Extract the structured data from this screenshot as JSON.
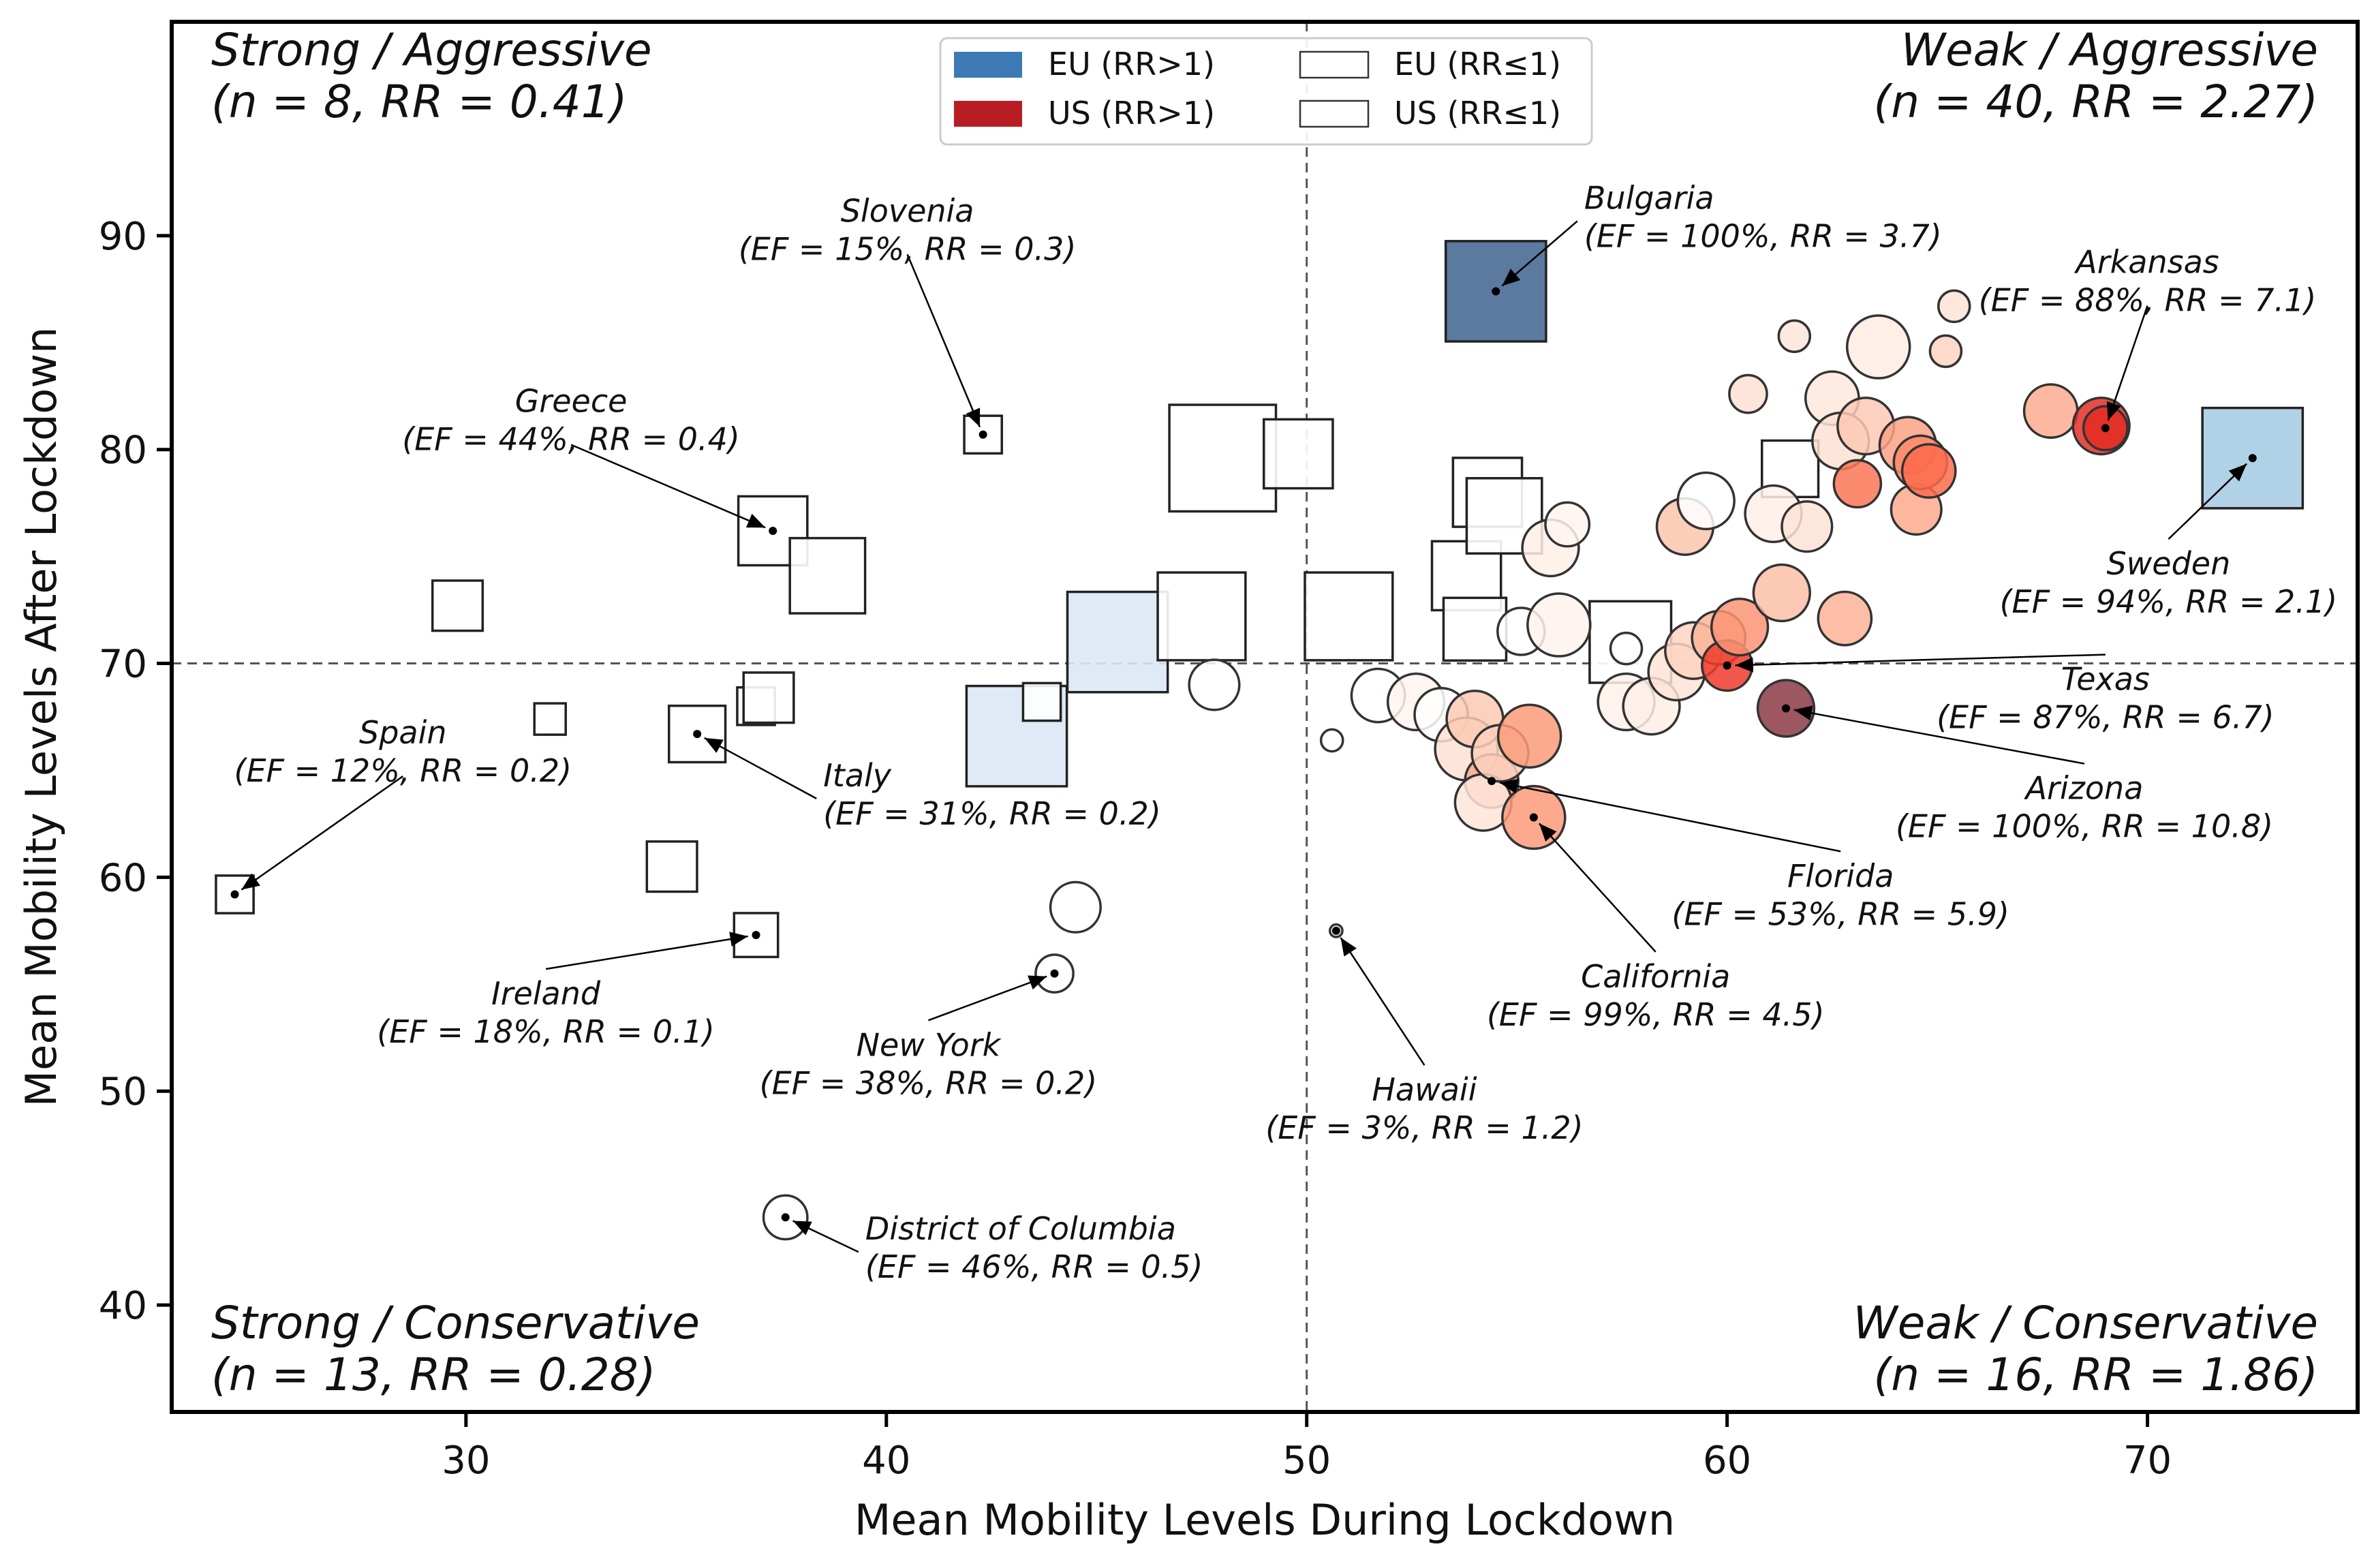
{
  "chart_data": {
    "type": "scatter",
    "xlabel": "Mean Mobility Levels During Lockdown",
    "ylabel": "Mean Mobility Levels After Lockdown",
    "xlim": [
      23,
      75
    ],
    "ylim": [
      35,
      100
    ],
    "xticks": [
      30,
      40,
      50,
      60,
      70
    ],
    "yticks": [
      40,
      50,
      60,
      70,
      80,
      90
    ],
    "grid": false,
    "divider_x": 50,
    "divider_y": 70,
    "legend_position": "top-center",
    "legend": [
      {
        "label": "EU (RR>1)",
        "shape": "square",
        "color": "#3d7ab5",
        "filled": true
      },
      {
        "label": "EU (RR≤1)",
        "shape": "square",
        "color": "#ffffff",
        "filled": false
      },
      {
        "label": "US (RR>1)",
        "shape": "square",
        "color": "#b81d24",
        "filled": true
      },
      {
        "label": "US (RR≤1)",
        "shape": "square",
        "color": "#ffffff",
        "filled": false
      }
    ],
    "quadrants": [
      {
        "title": "Strong / Aggressive",
        "stats": "(n = 8, RR = 0.41)",
        "position": "top-left"
      },
      {
        "title": "Weak / Aggressive",
        "stats": "(n = 40, RR = 2.27)",
        "position": "top-right"
      },
      {
        "title": "Strong / Conservative",
        "stats": "(n = 13, RR = 0.28)",
        "position": "bottom-left"
      },
      {
        "title": "Weak / Conservative",
        "stats": "(n = 16, RR = 1.86)",
        "position": "bottom-right"
      }
    ],
    "eu_points": [
      {
        "x": 24.5,
        "y": 59.2,
        "s": 0.6,
        "fill": "#ffffff"
      },
      {
        "x": 29.8,
        "y": 72.7,
        "s": 0.8,
        "fill": "#ffffff"
      },
      {
        "x": 32.0,
        "y": 67.4,
        "s": 0.5,
        "fill": "#ffffff"
      },
      {
        "x": 34.9,
        "y": 60.5,
        "s": 0.8,
        "fill": "#ffffff"
      },
      {
        "x": 35.5,
        "y": 66.7,
        "s": 0.9,
        "fill": "#ffffff"
      },
      {
        "x": 36.9,
        "y": 57.3,
        "s": 0.7,
        "fill": "#ffffff"
      },
      {
        "x": 36.9,
        "y": 68.0,
        "s": 0.6,
        "fill": "#ffffff"
      },
      {
        "x": 37.2,
        "y": 68.4,
        "s": 0.8,
        "fill": "#ffffff"
      },
      {
        "x": 37.3,
        "y": 76.2,
        "s": 1.1,
        "fill": "#ffffff"
      },
      {
        "x": 38.6,
        "y": 74.1,
        "s": 1.2,
        "fill": "#ffffff"
      },
      {
        "x": 42.3,
        "y": 80.7,
        "s": 0.6,
        "fill": "#ffffff"
      },
      {
        "x": 43.1,
        "y": 66.6,
        "s": 1.6,
        "fill": "#dbe8f5"
      },
      {
        "x": 43.7,
        "y": 68.2,
        "s": 0.6,
        "fill": "#ffffff"
      },
      {
        "x": 45.5,
        "y": 71.0,
        "s": 1.6,
        "fill": "#dbe8f5"
      },
      {
        "x": 47.5,
        "y": 72.2,
        "s": 1.4,
        "fill": "#ffffff"
      },
      {
        "x": 48.0,
        "y": 79.6,
        "s": 1.7,
        "fill": "#ffffff"
      },
      {
        "x": 49.8,
        "y": 79.8,
        "s": 1.1,
        "fill": "#ffffff"
      },
      {
        "x": 51.0,
        "y": 72.2,
        "s": 1.4,
        "fill": "#ffffff"
      },
      {
        "x": 53.8,
        "y": 74.1,
        "s": 1.1,
        "fill": "#ffffff"
      },
      {
        "x": 54.0,
        "y": 71.6,
        "s": 1.0,
        "fill": "#ffffff"
      },
      {
        "x": 54.3,
        "y": 78.0,
        "s": 1.1,
        "fill": "#ffffff"
      },
      {
        "x": 54.5,
        "y": 87.4,
        "s": 1.6,
        "fill": "#4a6a96"
      },
      {
        "x": 54.7,
        "y": 76.9,
        "s": 1.2,
        "fill": "#ffffff"
      },
      {
        "x": 57.7,
        "y": 71.0,
        "s": 1.3,
        "fill": "#ffffff"
      },
      {
        "x": 61.5,
        "y": 79.1,
        "s": 0.9,
        "fill": "#ffffff"
      },
      {
        "x": 72.5,
        "y": 79.6,
        "s": 1.6,
        "fill": "#a9cce4"
      }
    ],
    "us_points": [
      {
        "x": 37.6,
        "y": 44.1,
        "s": 0.7,
        "fill": "#ffffff"
      },
      {
        "x": 44.0,
        "y": 55.5,
        "s": 0.6,
        "fill": "#ffffff"
      },
      {
        "x": 44.5,
        "y": 58.6,
        "s": 0.8,
        "fill": "#ffffff"
      },
      {
        "x": 47.8,
        "y": 69.0,
        "s": 0.8,
        "fill": "#ffffff"
      },
      {
        "x": 50.6,
        "y": 66.4,
        "s": 0.35,
        "fill": "#ffffff"
      },
      {
        "x": 50.7,
        "y": 57.5,
        "s": 0.2,
        "fill": "#ffffff"
      },
      {
        "x": 51.7,
        "y": 68.5,
        "s": 0.85,
        "fill": "#ffffff"
      },
      {
        "x": 52.6,
        "y": 68.2,
        "s": 0.9,
        "fill": "#fff5f0"
      },
      {
        "x": 53.2,
        "y": 67.6,
        "s": 0.85,
        "fill": "#ffffff"
      },
      {
        "x": 53.8,
        "y": 66.0,
        "s": 1.0,
        "fill": "#fde0d2"
      },
      {
        "x": 54.0,
        "y": 67.4,
        "s": 0.9,
        "fill": "#fccab4"
      },
      {
        "x": 54.4,
        "y": 64.5,
        "s": 0.85,
        "fill": "#fcaa8d"
      },
      {
        "x": 54.2,
        "y": 63.5,
        "s": 0.9,
        "fill": "#fee5d9"
      },
      {
        "x": 54.6,
        "y": 65.8,
        "s": 0.9,
        "fill": "#fdd0bc"
      },
      {
        "x": 55.1,
        "y": 71.5,
        "s": 0.75,
        "fill": "#ffffff"
      },
      {
        "x": 55.3,
        "y": 66.6,
        "s": 1.0,
        "fill": "#fb9b7a"
      },
      {
        "x": 55.4,
        "y": 62.8,
        "s": 1.0,
        "fill": "#fb9a7a"
      },
      {
        "x": 55.8,
        "y": 75.4,
        "s": 0.9,
        "fill": "#fff0e8"
      },
      {
        "x": 56.0,
        "y": 71.8,
        "s": 1.0,
        "fill": "#fff3ed"
      },
      {
        "x": 56.2,
        "y": 76.5,
        "s": 0.7,
        "fill": "#fff5f0"
      },
      {
        "x": 57.6,
        "y": 70.7,
        "s": 0.5,
        "fill": "#ffffff"
      },
      {
        "x": 57.6,
        "y": 68.2,
        "s": 0.9,
        "fill": "#fff1ea"
      },
      {
        "x": 58.2,
        "y": 68.0,
        "s": 0.9,
        "fill": "#fdeee6"
      },
      {
        "x": 58.8,
        "y": 69.6,
        "s": 0.9,
        "fill": "#fee4d8"
      },
      {
        "x": 59.0,
        "y": 76.4,
        "s": 0.9,
        "fill": "#fcc4ad"
      },
      {
        "x": 59.2,
        "y": 70.6,
        "s": 0.9,
        "fill": "#fdd4c2"
      },
      {
        "x": 59.5,
        "y": 77.6,
        "s": 0.9,
        "fill": "#ffffff"
      },
      {
        "x": 59.8,
        "y": 71.2,
        "s": 0.85,
        "fill": "#fcb499"
      },
      {
        "x": 60.0,
        "y": 69.9,
        "s": 0.8,
        "fill": "#ef3b2c"
      },
      {
        "x": 60.3,
        "y": 71.7,
        "s": 0.9,
        "fill": "#fc9474"
      },
      {
        "x": 60.5,
        "y": 82.6,
        "s": 0.6,
        "fill": "#fde0d2"
      },
      {
        "x": 61.1,
        "y": 77.0,
        "s": 0.9,
        "fill": "#fff0e8"
      },
      {
        "x": 61.3,
        "y": 73.3,
        "s": 0.9,
        "fill": "#fcbfa7"
      },
      {
        "x": 61.4,
        "y": 67.9,
        "s": 0.9,
        "fill": "#8b3a44"
      },
      {
        "x": 61.9,
        "y": 76.4,
        "s": 0.8,
        "fill": "#fde3d6"
      },
      {
        "x": 61.6,
        "y": 85.3,
        "s": 0.5,
        "fill": "#fee5d9"
      },
      {
        "x": 62.5,
        "y": 82.4,
        "s": 0.85,
        "fill": "#fee8dd"
      },
      {
        "x": 62.7,
        "y": 80.4,
        "s": 0.9,
        "fill": "#fde0d2"
      },
      {
        "x": 62.8,
        "y": 72.1,
        "s": 0.85,
        "fill": "#fcb398"
      },
      {
        "x": 63.1,
        "y": 78.4,
        "s": 0.75,
        "fill": "#fb7555"
      },
      {
        "x": 63.3,
        "y": 81.1,
        "s": 0.9,
        "fill": "#fdc9b4"
      },
      {
        "x": 63.6,
        "y": 84.8,
        "s": 1.0,
        "fill": "#ffece3"
      },
      {
        "x": 64.3,
        "y": 80.2,
        "s": 0.9,
        "fill": "#fca285"
      },
      {
        "x": 64.5,
        "y": 77.2,
        "s": 0.8,
        "fill": "#fcaa8d"
      },
      {
        "x": 64.6,
        "y": 79.4,
        "s": 0.85,
        "fill": "#fb8a6a"
      },
      {
        "x": 64.8,
        "y": 79.0,
        "s": 0.85,
        "fill": "#fb6b4b"
      },
      {
        "x": 65.2,
        "y": 84.6,
        "s": 0.5,
        "fill": "#fdd3c1"
      },
      {
        "x": 65.4,
        "y": 86.7,
        "s": 0.5,
        "fill": "#fee4d8"
      },
      {
        "x": 67.7,
        "y": 81.8,
        "s": 0.85,
        "fill": "#fcab8f"
      },
      {
        "x": 68.9,
        "y": 81.1,
        "s": 0.9,
        "fill": "#e32f27"
      },
      {
        "x": 69.0,
        "y": 81.0,
        "s": 0.7,
        "fill": "#e22d26"
      }
    ],
    "annotations": [
      {
        "name": "Slovenia",
        "text": "(EF = 15%, RR = 0.3)",
        "x": 42.3,
        "y": 80.7,
        "tx": 40.5,
        "ty": 90.4,
        "align": "middle"
      },
      {
        "name": "Greece",
        "text": "(EF = 44%, RR = 0.4)",
        "x": 37.3,
        "y": 76.2,
        "tx": 32.5,
        "ty": 81.5,
        "align": "middle"
      },
      {
        "name": "Spain",
        "text": "(EF = 12%, RR = 0.2)",
        "x": 24.5,
        "y": 59.2,
        "tx": 28.5,
        "ty": 66.0,
        "align": "middle"
      },
      {
        "name": "Italy",
        "text": "(EF = 31%, RR = 0.2)",
        "x": 35.5,
        "y": 66.7,
        "tx": 38.5,
        "ty": 64.0,
        "align": "start"
      },
      {
        "name": "Ireland",
        "text": "(EF = 18%, RR = 0.1)",
        "x": 36.9,
        "y": 57.3,
        "tx": 31.9,
        "ty": 53.8,
        "align": "middle"
      },
      {
        "name": "New York",
        "text": "(EF = 38%, RR = 0.2)",
        "x": 44.0,
        "y": 55.5,
        "tx": 41.0,
        "ty": 51.4,
        "align": "middle"
      },
      {
        "name": "District of Columbia",
        "text": "(EF = 46%, RR = 0.5)",
        "x": 37.6,
        "y": 44.1,
        "tx": 39.5,
        "ty": 42.8,
        "align": "start"
      },
      {
        "name": "Hawaii",
        "text": "(EF = 3%, RR = 1.2)",
        "x": 50.7,
        "y": 57.5,
        "tx": 52.8,
        "ty": 49.3,
        "align": "middle"
      },
      {
        "name": "Bulgaria",
        "text": "(EF = 100%, RR = 3.7)",
        "x": 54.5,
        "y": 87.4,
        "tx": 56.6,
        "ty": 91.0,
        "align": "start"
      },
      {
        "name": "Arkansas",
        "text": "(EF = 88%, RR = 7.1)",
        "x": 69.0,
        "y": 81.0,
        "tx": 70.0,
        "ty": 88.0,
        "align": "middle"
      },
      {
        "name": "Sweden",
        "text": "(EF = 94%, RR = 2.1)",
        "x": 72.5,
        "y": 79.6,
        "tx": 70.5,
        "ty": 73.9,
        "align": "middle"
      },
      {
        "name": "Texas",
        "text": "(EF = 87%, RR = 6.7)",
        "x": 60.0,
        "y": 69.9,
        "tx": 69.0,
        "ty": 68.5,
        "align": "middle"
      },
      {
        "name": "Arizona",
        "text": "(EF = 100%, RR = 10.8)",
        "x": 61.4,
        "y": 67.9,
        "tx": 68.5,
        "ty": 63.4,
        "align": "middle"
      },
      {
        "name": "Florida",
        "text": "(EF = 53%, RR = 5.9)",
        "x": 54.4,
        "y": 64.5,
        "tx": 62.7,
        "ty": 59.3,
        "align": "middle"
      },
      {
        "name": "California",
        "text": "(EF = 99%, RR = 4.5)",
        "x": 55.4,
        "y": 62.8,
        "tx": 58.3,
        "ty": 54.6,
        "align": "middle"
      }
    ]
  }
}
